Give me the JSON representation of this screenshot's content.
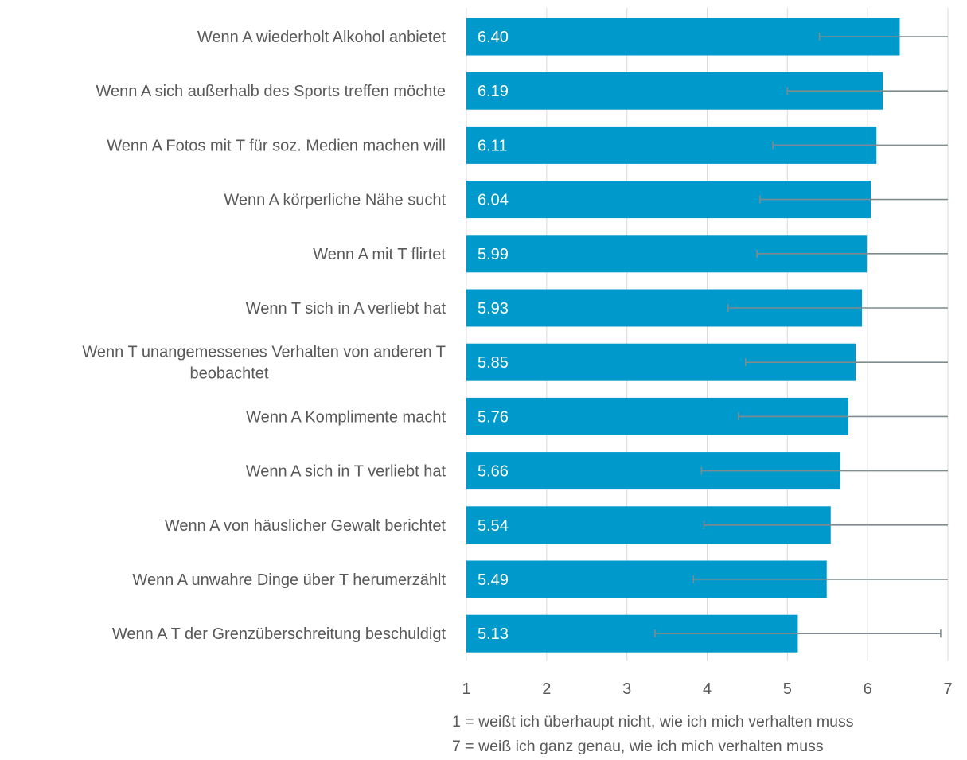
{
  "chart_data": {
    "type": "bar",
    "orientation": "horizontal",
    "categories": [
      "Wenn A wiederholt Alkohol anbietet",
      "Wenn A sich außerhalb des Sports treffen möchte",
      "Wenn A Fotos mit T für soz. Medien machen will",
      "Wenn A körperliche Nähe sucht",
      "Wenn A mit T flirtet",
      "Wenn T sich in A verliebt hat",
      "Wenn T unangemessenes Verhalten von anderen T beobachtet",
      "Wenn A Komplimente macht",
      "Wenn A sich in T verliebt hat",
      "Wenn A von häuslicher Gewalt berichtet",
      "Wenn A unwahre Dinge über T herumerzählt",
      "Wenn A T der Grenzüberschreitung beschuldigt"
    ],
    "category_lines": [
      [
        "Wenn A wiederholt Alkohol anbietet"
      ],
      [
        "Wenn A sich außerhalb des Sports treffen möchte"
      ],
      [
        "Wenn A Fotos mit T für soz. Medien machen will"
      ],
      [
        "Wenn A körperliche Nähe sucht"
      ],
      [
        "Wenn A mit T flirtet"
      ],
      [
        "Wenn T sich in A verliebt hat"
      ],
      [
        "Wenn T unangemessenes Verhalten von anderen T",
        "beobachtet"
      ],
      [
        "Wenn A Komplimente macht"
      ],
      [
        "Wenn A sich in T verliebt hat"
      ],
      [
        "Wenn A von häuslicher Gewalt berichtet"
      ],
      [
        "Wenn A unwahre Dinge über T herumerzählt"
      ],
      [
        "Wenn A T der Grenzüberschreitung beschuldigt"
      ]
    ],
    "values": [
      6.4,
      6.19,
      6.11,
      6.04,
      5.99,
      5.93,
      5.85,
      5.76,
      5.66,
      5.54,
      5.49,
      5.13
    ],
    "value_labels": [
      "6.40",
      "6.19",
      "6.11",
      "6.04",
      "5.99",
      "5.93",
      "5.85",
      "5.76",
      "5.66",
      "5.54",
      "5.49",
      "5.13"
    ],
    "error_bars": [
      [
        5.4,
        7.0
      ],
      [
        5.0,
        7.0
      ],
      [
        4.82,
        7.0
      ],
      [
        4.66,
        7.0
      ],
      [
        4.62,
        7.0
      ],
      [
        4.26,
        7.0
      ],
      [
        4.48,
        7.0
      ],
      [
        4.39,
        7.0
      ],
      [
        3.93,
        7.0
      ],
      [
        3.96,
        7.0
      ],
      [
        3.83,
        7.0
      ],
      [
        3.35,
        6.91
      ]
    ],
    "xlim": [
      1,
      7
    ],
    "xticks": [
      1,
      2,
      3,
      4,
      5,
      6,
      7
    ],
    "xtick_labels": [
      "1",
      "2",
      "3",
      "4",
      "5",
      "6",
      "7"
    ],
    "grid": "vertical",
    "bar_color": "#0099cc",
    "error_color": "#7f8c8d",
    "text_color": "#595959",
    "scale_notes": [
      "1 = weißt ich überhaupt nicht, wie ich mich verhalten muss",
      "7 = weiß ich ganz genau, wie ich mich verhalten muss"
    ]
  }
}
